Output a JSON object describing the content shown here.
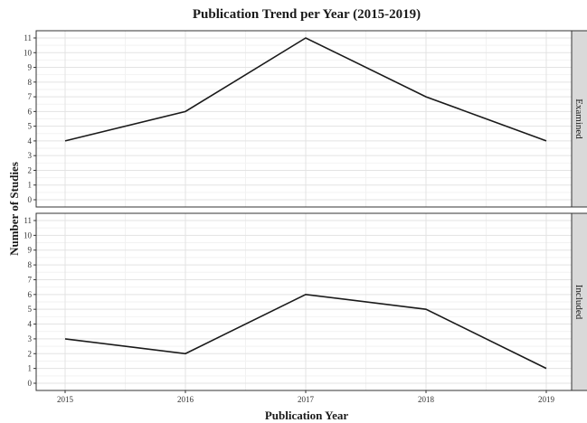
{
  "chart_data": {
    "type": "line",
    "title": "Publication Trend per Year (2015-2019)",
    "xlabel": "Publication Year",
    "ylabel": "Number of Studies",
    "x": [
      2015,
      2016,
      2017,
      2018,
      2019
    ],
    "x_tick_labels": [
      "2015",
      "2016",
      "2017",
      "2018",
      "2019"
    ],
    "y_tick_labels": [
      "0",
      "1",
      "2",
      "3",
      "4",
      "5",
      "6",
      "7",
      "8",
      "9",
      "10",
      "11"
    ],
    "ylim": [
      0,
      11
    ],
    "grid": true,
    "facets": [
      {
        "strip_label": "Examined",
        "values": [
          4,
          6,
          11,
          7,
          4
        ]
      },
      {
        "strip_label": "Included",
        "values": [
          3,
          2,
          6,
          5,
          1
        ]
      }
    ]
  },
  "colors": {
    "line": "#1a1a1a",
    "strip_fill": "#d9d9d9",
    "grid_major": "#e3e3e3",
    "grid_minor": "#f2f2f2"
  }
}
